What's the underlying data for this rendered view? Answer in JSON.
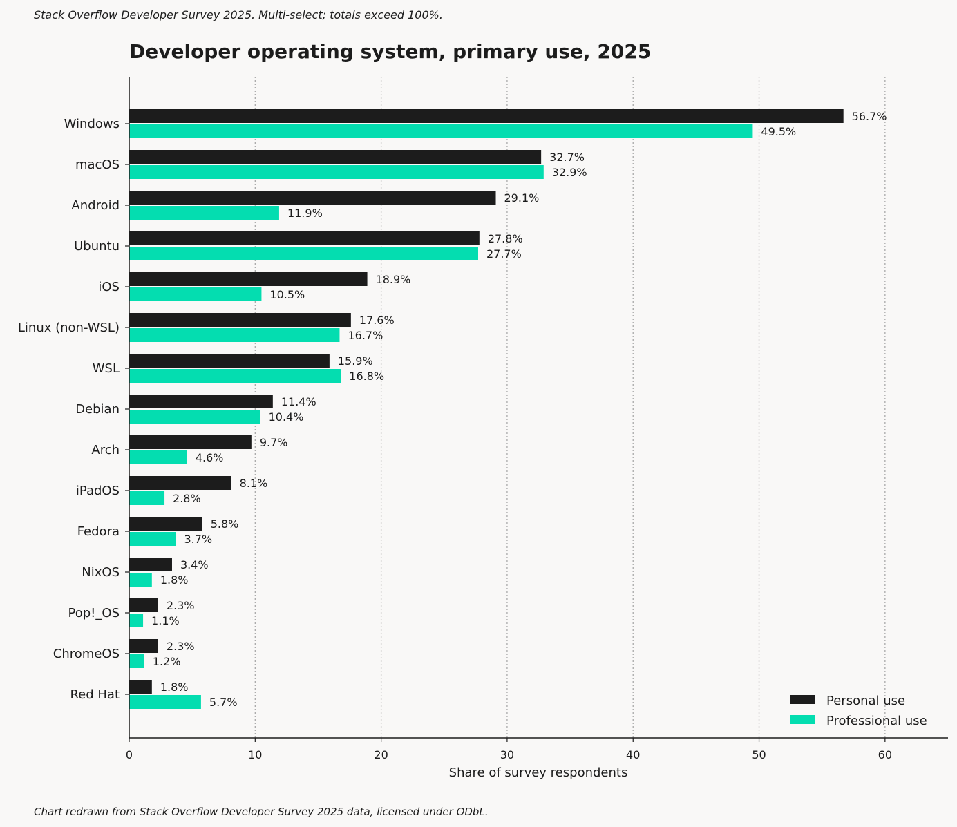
{
  "header": {
    "note": "Stack Overflow Developer Survey 2025. Multi-select; totals exceed 100%."
  },
  "footer": {
    "note": "Chart redrawn from Stack Overflow Developer Survey 2025 data, licensed under ODbL."
  },
  "colors": {
    "personal": "#1c1c1c",
    "professional": "#04ddb0",
    "background": "#f9f8f7",
    "grid": "#a8a8a8"
  },
  "chart_data": {
    "type": "bar",
    "orientation": "horizontal",
    "title": "Developer operating system, primary use, 2025",
    "xlabel": "Share of survey respondents",
    "ylabel": "",
    "xlim": [
      0,
      65
    ],
    "xticks": [
      0,
      10,
      20,
      30,
      40,
      50,
      60
    ],
    "grid": "x-dotted",
    "legend_position": "bottom-right",
    "categories": [
      "Windows",
      "macOS",
      "Android",
      "Ubuntu",
      "iOS",
      "Linux (non-WSL)",
      "WSL",
      "Debian",
      "Arch",
      "iPadOS",
      "Fedora",
      "NixOS",
      "Pop!_OS",
      "ChromeOS",
      "Red Hat"
    ],
    "series": [
      {
        "name": "Personal use",
        "color": "#1c1c1c",
        "values": [
          56.7,
          32.7,
          29.1,
          27.8,
          18.9,
          17.6,
          15.9,
          11.4,
          9.7,
          8.1,
          5.8,
          3.4,
          2.3,
          2.3,
          1.8
        ],
        "labels": [
          "56.7%",
          "32.7%",
          "29.1%",
          "27.8%",
          "18.9%",
          "17.6%",
          "15.9%",
          "11.4%",
          "9.7%",
          "8.1%",
          "5.8%",
          "3.4%",
          "2.3%",
          "2.3%",
          "1.8%"
        ]
      },
      {
        "name": "Professional use",
        "color": "#04ddb0",
        "values": [
          49.5,
          32.9,
          11.9,
          27.7,
          10.5,
          16.7,
          16.8,
          10.4,
          4.6,
          2.8,
          3.7,
          1.8,
          1.1,
          1.2,
          5.7
        ],
        "labels": [
          "49.5%",
          "32.9%",
          "11.9%",
          "27.7%",
          "10.5%",
          "16.7%",
          "16.8%",
          "10.4%",
          "4.6%",
          "2.8%",
          "3.7%",
          "1.8%",
          "1.1%",
          "1.2%",
          "5.7%"
        ]
      }
    ]
  }
}
